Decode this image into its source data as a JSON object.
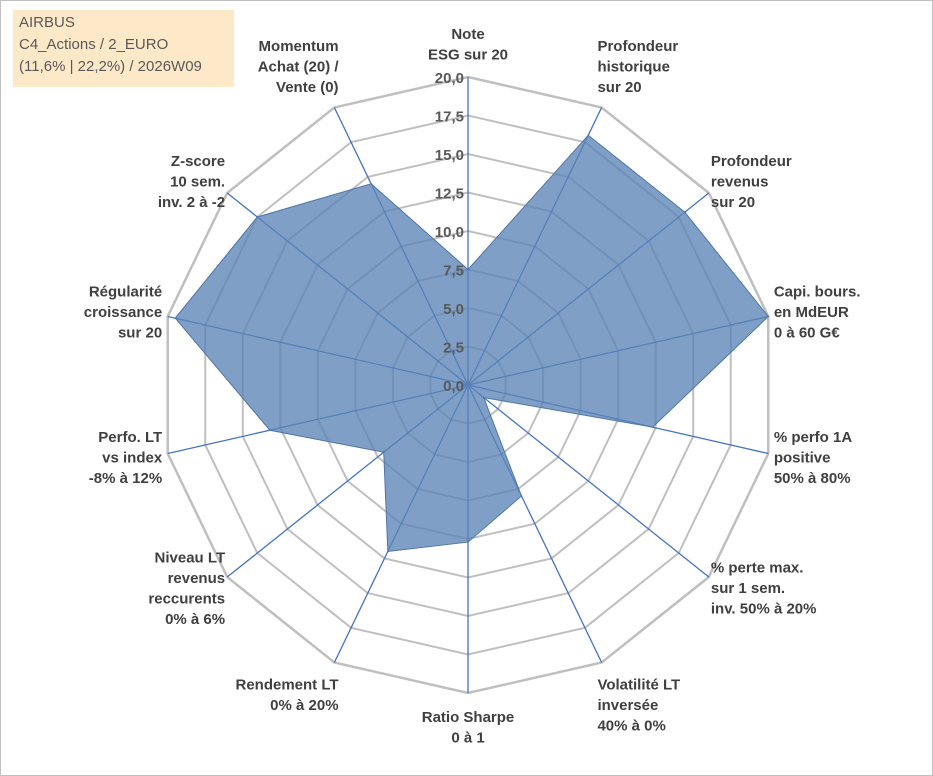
{
  "info_box": {
    "title": "AIRBUS",
    "line2": "C4_Actions / 2_EURO",
    "line3": "(11,6% | 22,2%) / 2026W09"
  },
  "colors": {
    "fill": "#5b84b6",
    "fill_opacity": 0.78,
    "stroke": "#4f76a8",
    "spokes": "#4472c4",
    "grid": "#bfbfbf",
    "info_bg": "#fde9c8"
  },
  "chart_data": {
    "type": "radar",
    "title": "",
    "rmin": 0,
    "rmax": 20,
    "tick_step": 2.5,
    "tick_labels": [
      "0,0",
      "2,5",
      "5,0",
      "7,5",
      "10,0",
      "12,5",
      "15,0",
      "17,5",
      "20,0"
    ],
    "axes": [
      {
        "label": "Note\nESG sur 20",
        "value": 7.5
      },
      {
        "label": "Profondeur\nhistorique\nsur 20",
        "value": 18.0
      },
      {
        "label": "Profondeur\nrevenus\nsur 20",
        "value": 18.0
      },
      {
        "label": "Capi. bours.\nen MdEUR\n0 à 60 G€",
        "value": 20.0
      },
      {
        "label": "% perfo 1A\npositive\n50% à 80%",
        "value": 12.3
      },
      {
        "label": "% perte max.\nsur 1 sem.\ninv. 50% à 20%",
        "value": 1.3
      },
      {
        "label": "Volatilité LT\ninversée\n40% à 0%",
        "value": 8.0
      },
      {
        "label": "Ratio Sharpe\n0 à 1",
        "value": 10.2
      },
      {
        "label": "Rendement LT\n0% à 20%",
        "value": 12.0
      },
      {
        "label": "Niveau LT\nrevenus\nreccurents\n0% à 6%",
        "value": 7.0
      },
      {
        "label": "Perfo. LT\nvs index\n-8% à 12%",
        "value": 13.2
      },
      {
        "label": "Régularité\ncroissance\nsur 20",
        "value": 19.5
      },
      {
        "label": "Z-score\n10 sem.\ninv. 2 à -2",
        "value": 17.5
      },
      {
        "label": "Momentum\nAchat (20) /\nVente (0)",
        "value": 14.5
      }
    ]
  }
}
